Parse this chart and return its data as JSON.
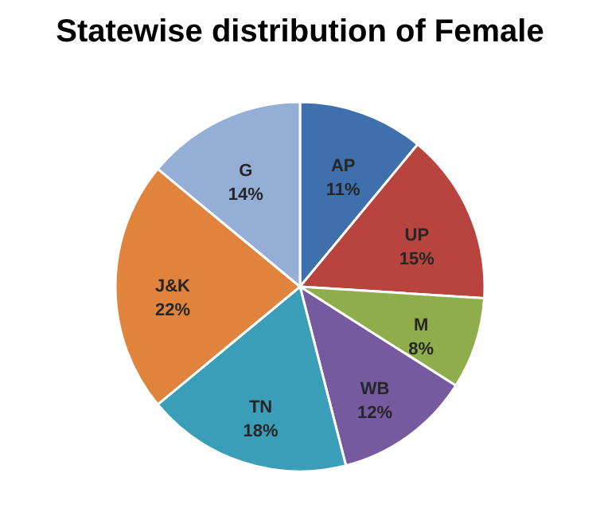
{
  "chart_data": {
    "type": "pie",
    "title": "Statewise distribution of Female",
    "categories": [
      "AP",
      "UP",
      "M",
      "WB",
      "TN",
      "J&K",
      "G"
    ],
    "values": [
      11,
      15,
      8,
      12,
      18,
      22,
      14
    ],
    "value_labels": [
      "11%",
      "15%",
      "8%",
      "12%",
      "18%",
      "22%",
      "14%"
    ],
    "colors": [
      "#3f70ad",
      "#b8433f",
      "#8fae4b",
      "#765aa0",
      "#3a9eb8",
      "#e0833c",
      "#94aed6"
    ],
    "legend": false
  }
}
